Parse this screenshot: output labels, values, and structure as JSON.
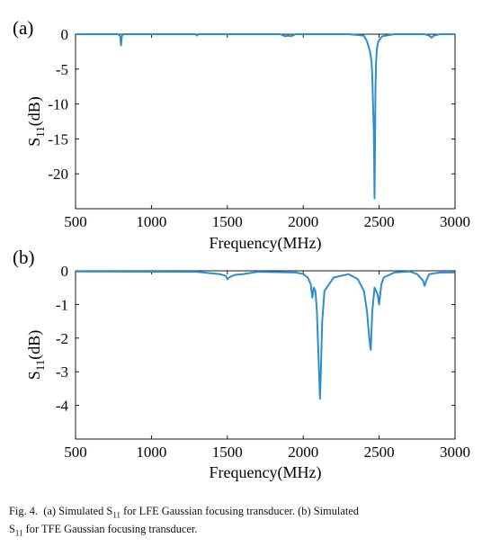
{
  "chart_data": [
    {
      "panel_label": "(a)",
      "type": "line",
      "xlabel": "Frequency(MHz)",
      "ylabel_main": "S",
      "ylabel_sub": "11",
      "ylabel_unit": "(dB)",
      "xlim": [
        500,
        3000
      ],
      "ylim": [
        -25,
        0
      ],
      "xticks": [
        500,
        1000,
        1500,
        2000,
        2500,
        3000
      ],
      "yticks": [
        0,
        -5,
        -10,
        -15,
        -20
      ],
      "color": "#2b8ed0",
      "series": [
        {
          "x": [
            500,
            700,
            780,
            795,
            800,
            805,
            812,
            830,
            1000,
            1290,
            1300,
            1310,
            1500,
            1850,
            1880,
            1900,
            1920,
            1950,
            2300,
            2400,
            2420,
            2440,
            2450,
            2455,
            2460,
            2465,
            2470,
            2472,
            2476,
            2480,
            2486,
            2495,
            2520,
            2600,
            2700,
            2800,
            2830,
            2845,
            2860,
            2900,
            3000
          ],
          "y": [
            0,
            0,
            0,
            -0.3,
            -1.6,
            -0.3,
            0,
            0,
            0,
            0,
            -0.2,
            0,
            0,
            0,
            -0.3,
            -0.2,
            -0.3,
            0,
            0,
            -0.2,
            -1,
            -2.5,
            -4,
            -6,
            -10,
            -14,
            -23.5,
            -18,
            -8,
            -4,
            -2,
            -1,
            -0.3,
            0,
            0,
            0,
            -0.2,
            -0.5,
            -0.2,
            0,
            0
          ]
        }
      ]
    },
    {
      "panel_label": "(b)",
      "type": "line",
      "xlabel": "Frequency(MHz)",
      "ylabel_main": "S",
      "ylabel_sub": "11",
      "ylabel_unit": "(dB)",
      "xlim": [
        500,
        3000
      ],
      "ylim": [
        -5,
        0
      ],
      "xticks": [
        500,
        1000,
        1500,
        2000,
        2500,
        3000
      ],
      "yticks": [
        0,
        -1,
        -2,
        -3,
        -4
      ],
      "color": "#2b8ed0",
      "series": [
        {
          "x": [
            500,
            1300,
            1450,
            1490,
            1500,
            1510,
            1550,
            1600,
            1700,
            1950,
            2000,
            2030,
            2050,
            2060,
            2070,
            2080,
            2090,
            2100,
            2110,
            2115,
            2125,
            2140,
            2200,
            2300,
            2360,
            2400,
            2420,
            2435,
            2445,
            2455,
            2470,
            2490,
            2500,
            2505,
            2515,
            2530,
            2600,
            2700,
            2750,
            2790,
            2800,
            2810,
            2830,
            2900,
            3000
          ],
          "y": [
            -0.02,
            -0.03,
            -0.1,
            -0.15,
            -0.25,
            -0.2,
            -0.12,
            -0.1,
            -0.03,
            -0.05,
            -0.1,
            -0.2,
            -0.4,
            -0.8,
            -0.5,
            -0.6,
            -1.2,
            -2.5,
            -3.8,
            -3.2,
            -1.5,
            -0.6,
            -0.2,
            -0.1,
            -0.25,
            -0.6,
            -1.2,
            -2.0,
            -2.35,
            -1.2,
            -0.5,
            -0.7,
            -1.0,
            -0.8,
            -0.4,
            -0.2,
            -0.05,
            -0.02,
            -0.1,
            -0.3,
            -0.45,
            -0.3,
            -0.1,
            -0.05,
            -0.05
          ]
        }
      ]
    }
  ],
  "caption": {
    "fig_label": "Fig. 4.",
    "part_a": "(a) Simulated S",
    "sub_a": "11",
    "part_a_rest": " for LFE Gaussian focusing transducer. (b) Simulated",
    "part_b_start": "S",
    "sub_b": "11",
    "part_b_rest": " for TFE Gaussian focusing transducer."
  }
}
